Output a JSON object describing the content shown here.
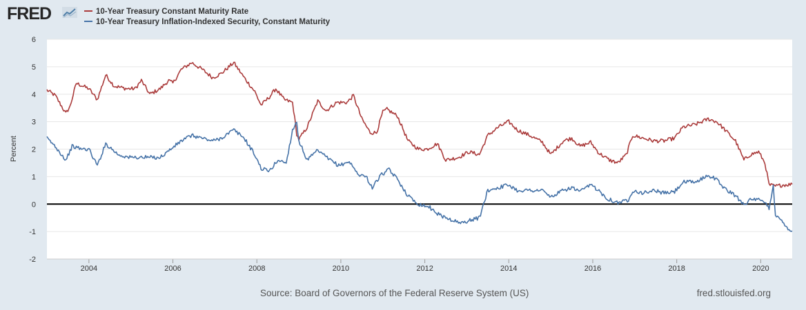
{
  "brand": {
    "logo_text": "FRED"
  },
  "footer": {
    "source": "Source: Board of Governors of the Federal Reserve System (US)",
    "url": "fred.stlouisfed.org"
  },
  "chart_data": {
    "type": "line",
    "title": "",
    "xlabel": "",
    "ylabel": "Percent",
    "xlim": [
      2003.0,
      2020.75
    ],
    "ylim": [
      -2,
      6
    ],
    "yticks": [
      -2,
      -1,
      0,
      1,
      2,
      3,
      4,
      5,
      6
    ],
    "xticks": [
      2004,
      2006,
      2008,
      2010,
      2012,
      2014,
      2016,
      2018,
      2020
    ],
    "xtick_labels": [
      "2004",
      "2006",
      "2008",
      "2010",
      "2012",
      "2014",
      "2016",
      "2018",
      "2020"
    ],
    "grid": "horizontal",
    "legend_position": "top-left",
    "zero_line": true,
    "series": [
      {
        "name": "10-Year Treasury Constant Maturity Rate",
        "color": "#aa3a3a",
        "points": [
          [
            2003.0,
            4.15
          ],
          [
            2003.2,
            3.95
          ],
          [
            2003.45,
            3.3
          ],
          [
            2003.55,
            3.55
          ],
          [
            2003.7,
            4.4
          ],
          [
            2003.85,
            4.3
          ],
          [
            2004.0,
            4.2
          ],
          [
            2004.2,
            3.8
          ],
          [
            2004.4,
            4.7
          ],
          [
            2004.6,
            4.3
          ],
          [
            2004.9,
            4.2
          ],
          [
            2005.1,
            4.2
          ],
          [
            2005.25,
            4.5
          ],
          [
            2005.45,
            4.0
          ],
          [
            2005.7,
            4.2
          ],
          [
            2005.9,
            4.5
          ],
          [
            2006.0,
            4.4
          ],
          [
            2006.2,
            4.9
          ],
          [
            2006.45,
            5.15
          ],
          [
            2006.7,
            4.9
          ],
          [
            2006.95,
            4.6
          ],
          [
            2007.15,
            4.75
          ],
          [
            2007.45,
            5.15
          ],
          [
            2007.7,
            4.6
          ],
          [
            2007.95,
            4.1
          ],
          [
            2008.1,
            3.6
          ],
          [
            2008.3,
            3.9
          ],
          [
            2008.45,
            4.2
          ],
          [
            2008.65,
            3.8
          ],
          [
            2008.85,
            3.7
          ],
          [
            2008.95,
            2.55
          ],
          [
            2009.0,
            2.35
          ],
          [
            2009.2,
            2.8
          ],
          [
            2009.45,
            3.75
          ],
          [
            2009.65,
            3.4
          ],
          [
            2009.9,
            3.7
          ],
          [
            2010.15,
            3.7
          ],
          [
            2010.3,
            3.95
          ],
          [
            2010.5,
            3.1
          ],
          [
            2010.7,
            2.6
          ],
          [
            2010.85,
            2.6
          ],
          [
            2011.0,
            3.35
          ],
          [
            2011.1,
            3.45
          ],
          [
            2011.35,
            3.2
          ],
          [
            2011.6,
            2.3
          ],
          [
            2011.85,
            2.0
          ],
          [
            2012.05,
            2.0
          ],
          [
            2012.3,
            2.2
          ],
          [
            2012.5,
            1.6
          ],
          [
            2012.8,
            1.7
          ],
          [
            2013.05,
            1.9
          ],
          [
            2013.3,
            1.8
          ],
          [
            2013.5,
            2.5
          ],
          [
            2013.75,
            2.8
          ],
          [
            2014.0,
            3.0
          ],
          [
            2014.2,
            2.7
          ],
          [
            2014.5,
            2.5
          ],
          [
            2014.8,
            2.25
          ],
          [
            2015.0,
            1.8
          ],
          [
            2015.3,
            2.3
          ],
          [
            2015.5,
            2.4
          ],
          [
            2015.7,
            2.1
          ],
          [
            2015.95,
            2.25
          ],
          [
            2016.15,
            1.85
          ],
          [
            2016.4,
            1.6
          ],
          [
            2016.6,
            1.5
          ],
          [
            2016.8,
            1.8
          ],
          [
            2016.95,
            2.5
          ],
          [
            2017.2,
            2.4
          ],
          [
            2017.45,
            2.3
          ],
          [
            2017.7,
            2.3
          ],
          [
            2017.95,
            2.4
          ],
          [
            2018.15,
            2.8
          ],
          [
            2018.45,
            2.9
          ],
          [
            2018.75,
            3.1
          ],
          [
            2018.95,
            3.0
          ],
          [
            2019.15,
            2.7
          ],
          [
            2019.4,
            2.3
          ],
          [
            2019.6,
            1.6
          ],
          [
            2019.75,
            1.8
          ],
          [
            2019.95,
            1.9
          ],
          [
            2020.1,
            1.5
          ],
          [
            2020.2,
            0.7
          ],
          [
            2020.35,
            0.65
          ],
          [
            2020.55,
            0.7
          ],
          [
            2020.75,
            0.72
          ]
        ]
      },
      {
        "name": "10-Year Treasury Inflation-Indexed Security, Constant Maturity",
        "color": "#4572a7",
        "points": [
          [
            2003.0,
            2.4
          ],
          [
            2003.2,
            2.1
          ],
          [
            2003.45,
            1.6
          ],
          [
            2003.6,
            2.1
          ],
          [
            2003.85,
            2.0
          ],
          [
            2004.0,
            2.0
          ],
          [
            2004.2,
            1.4
          ],
          [
            2004.4,
            2.2
          ],
          [
            2004.7,
            1.8
          ],
          [
            2004.95,
            1.7
          ],
          [
            2005.2,
            1.7
          ],
          [
            2005.45,
            1.7
          ],
          [
            2005.7,
            1.7
          ],
          [
            2005.95,
            2.0
          ],
          [
            2006.2,
            2.3
          ],
          [
            2006.45,
            2.5
          ],
          [
            2006.7,
            2.4
          ],
          [
            2006.95,
            2.3
          ],
          [
            2007.15,
            2.4
          ],
          [
            2007.45,
            2.7
          ],
          [
            2007.7,
            2.4
          ],
          [
            2007.95,
            1.8
          ],
          [
            2008.1,
            1.3
          ],
          [
            2008.3,
            1.2
          ],
          [
            2008.5,
            1.6
          ],
          [
            2008.7,
            1.5
          ],
          [
            2008.85,
            2.7
          ],
          [
            2008.95,
            3.0
          ],
          [
            2009.0,
            2.3
          ],
          [
            2009.2,
            1.6
          ],
          [
            2009.45,
            1.95
          ],
          [
            2009.7,
            1.65
          ],
          [
            2009.95,
            1.4
          ],
          [
            2010.2,
            1.55
          ],
          [
            2010.4,
            1.1
          ],
          [
            2010.6,
            1.0
          ],
          [
            2010.75,
            0.6
          ],
          [
            2010.95,
            1.05
          ],
          [
            2011.15,
            1.25
          ],
          [
            2011.35,
            0.9
          ],
          [
            2011.6,
            0.3
          ],
          [
            2011.85,
            0.0
          ],
          [
            2012.1,
            -0.1
          ],
          [
            2012.35,
            -0.4
          ],
          [
            2012.6,
            -0.55
          ],
          [
            2012.85,
            -0.7
          ],
          [
            2013.05,
            -0.6
          ],
          [
            2013.3,
            -0.5
          ],
          [
            2013.5,
            0.5
          ],
          [
            2013.75,
            0.6
          ],
          [
            2014.0,
            0.7
          ],
          [
            2014.2,
            0.5
          ],
          [
            2014.5,
            0.5
          ],
          [
            2014.8,
            0.5
          ],
          [
            2015.0,
            0.25
          ],
          [
            2015.3,
            0.5
          ],
          [
            2015.5,
            0.6
          ],
          [
            2015.7,
            0.45
          ],
          [
            2015.95,
            0.7
          ],
          [
            2016.1,
            0.55
          ],
          [
            2016.35,
            0.2
          ],
          [
            2016.6,
            0.05
          ],
          [
            2016.85,
            0.15
          ],
          [
            2016.95,
            0.5
          ],
          [
            2017.2,
            0.4
          ],
          [
            2017.45,
            0.5
          ],
          [
            2017.7,
            0.4
          ],
          [
            2017.95,
            0.45
          ],
          [
            2018.15,
            0.8
          ],
          [
            2018.45,
            0.8
          ],
          [
            2018.75,
            1.05
          ],
          [
            2018.95,
            0.9
          ],
          [
            2019.15,
            0.55
          ],
          [
            2019.4,
            0.3
          ],
          [
            2019.6,
            0.0
          ],
          [
            2019.75,
            0.15
          ],
          [
            2019.95,
            0.15
          ],
          [
            2020.1,
            0.05
          ],
          [
            2020.2,
            -0.15
          ],
          [
            2020.3,
            0.7
          ],
          [
            2020.35,
            -0.4
          ],
          [
            2020.55,
            -0.7
          ],
          [
            2020.7,
            -0.95
          ],
          [
            2020.75,
            -0.98
          ]
        ]
      }
    ]
  }
}
